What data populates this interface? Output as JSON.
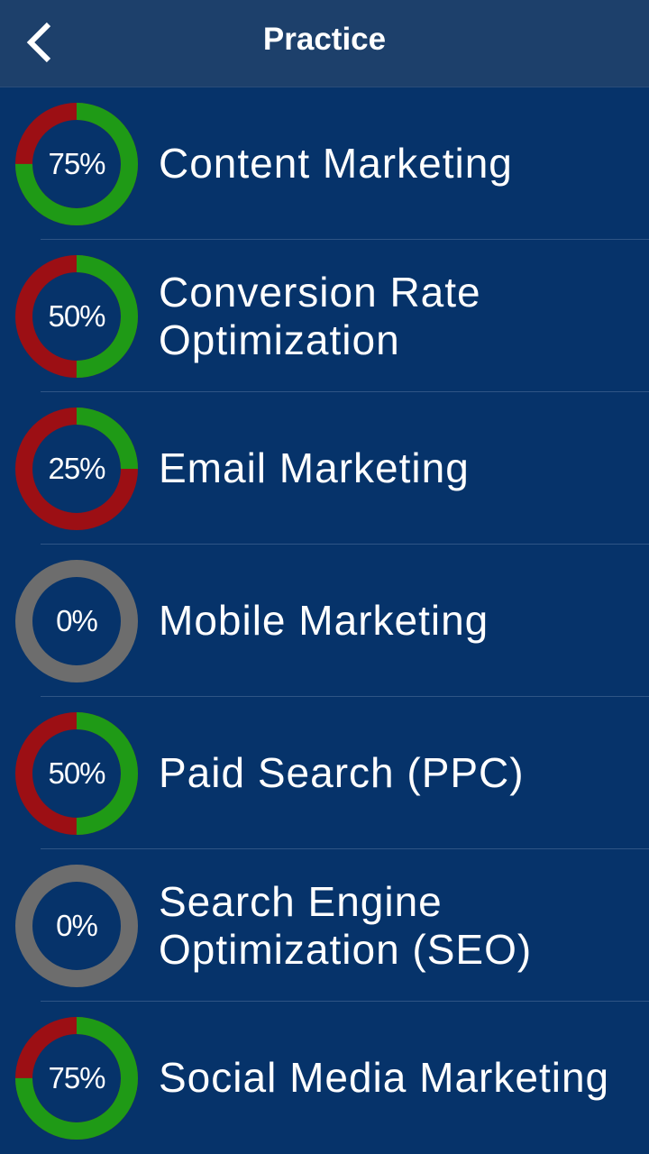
{
  "header": {
    "title": "Practice",
    "back_icon": "chevron-left-icon"
  },
  "colors": {
    "complete": "#1f9a16",
    "incomplete": "#9c0f14",
    "empty": "#6d6d6d"
  },
  "items": [
    {
      "label": "Content Marketing",
      "percent_label": "75%",
      "progress": 75
    },
    {
      "label": "Conversion Rate Optimization",
      "percent_label": "50%",
      "progress": 50
    },
    {
      "label": "Email Marketing",
      "percent_label": "25%",
      "progress": 25
    },
    {
      "label": "Mobile Marketing",
      "percent_label": "0%",
      "progress": 0
    },
    {
      "label": "Paid Search (PPC)",
      "percent_label": "50%",
      "progress": 50
    },
    {
      "label": "Search Engine Optimization (SEO)",
      "percent_label": "0%",
      "progress": 0
    },
    {
      "label": "Social Media Marketing",
      "percent_label": "75%",
      "progress": 75
    }
  ]
}
